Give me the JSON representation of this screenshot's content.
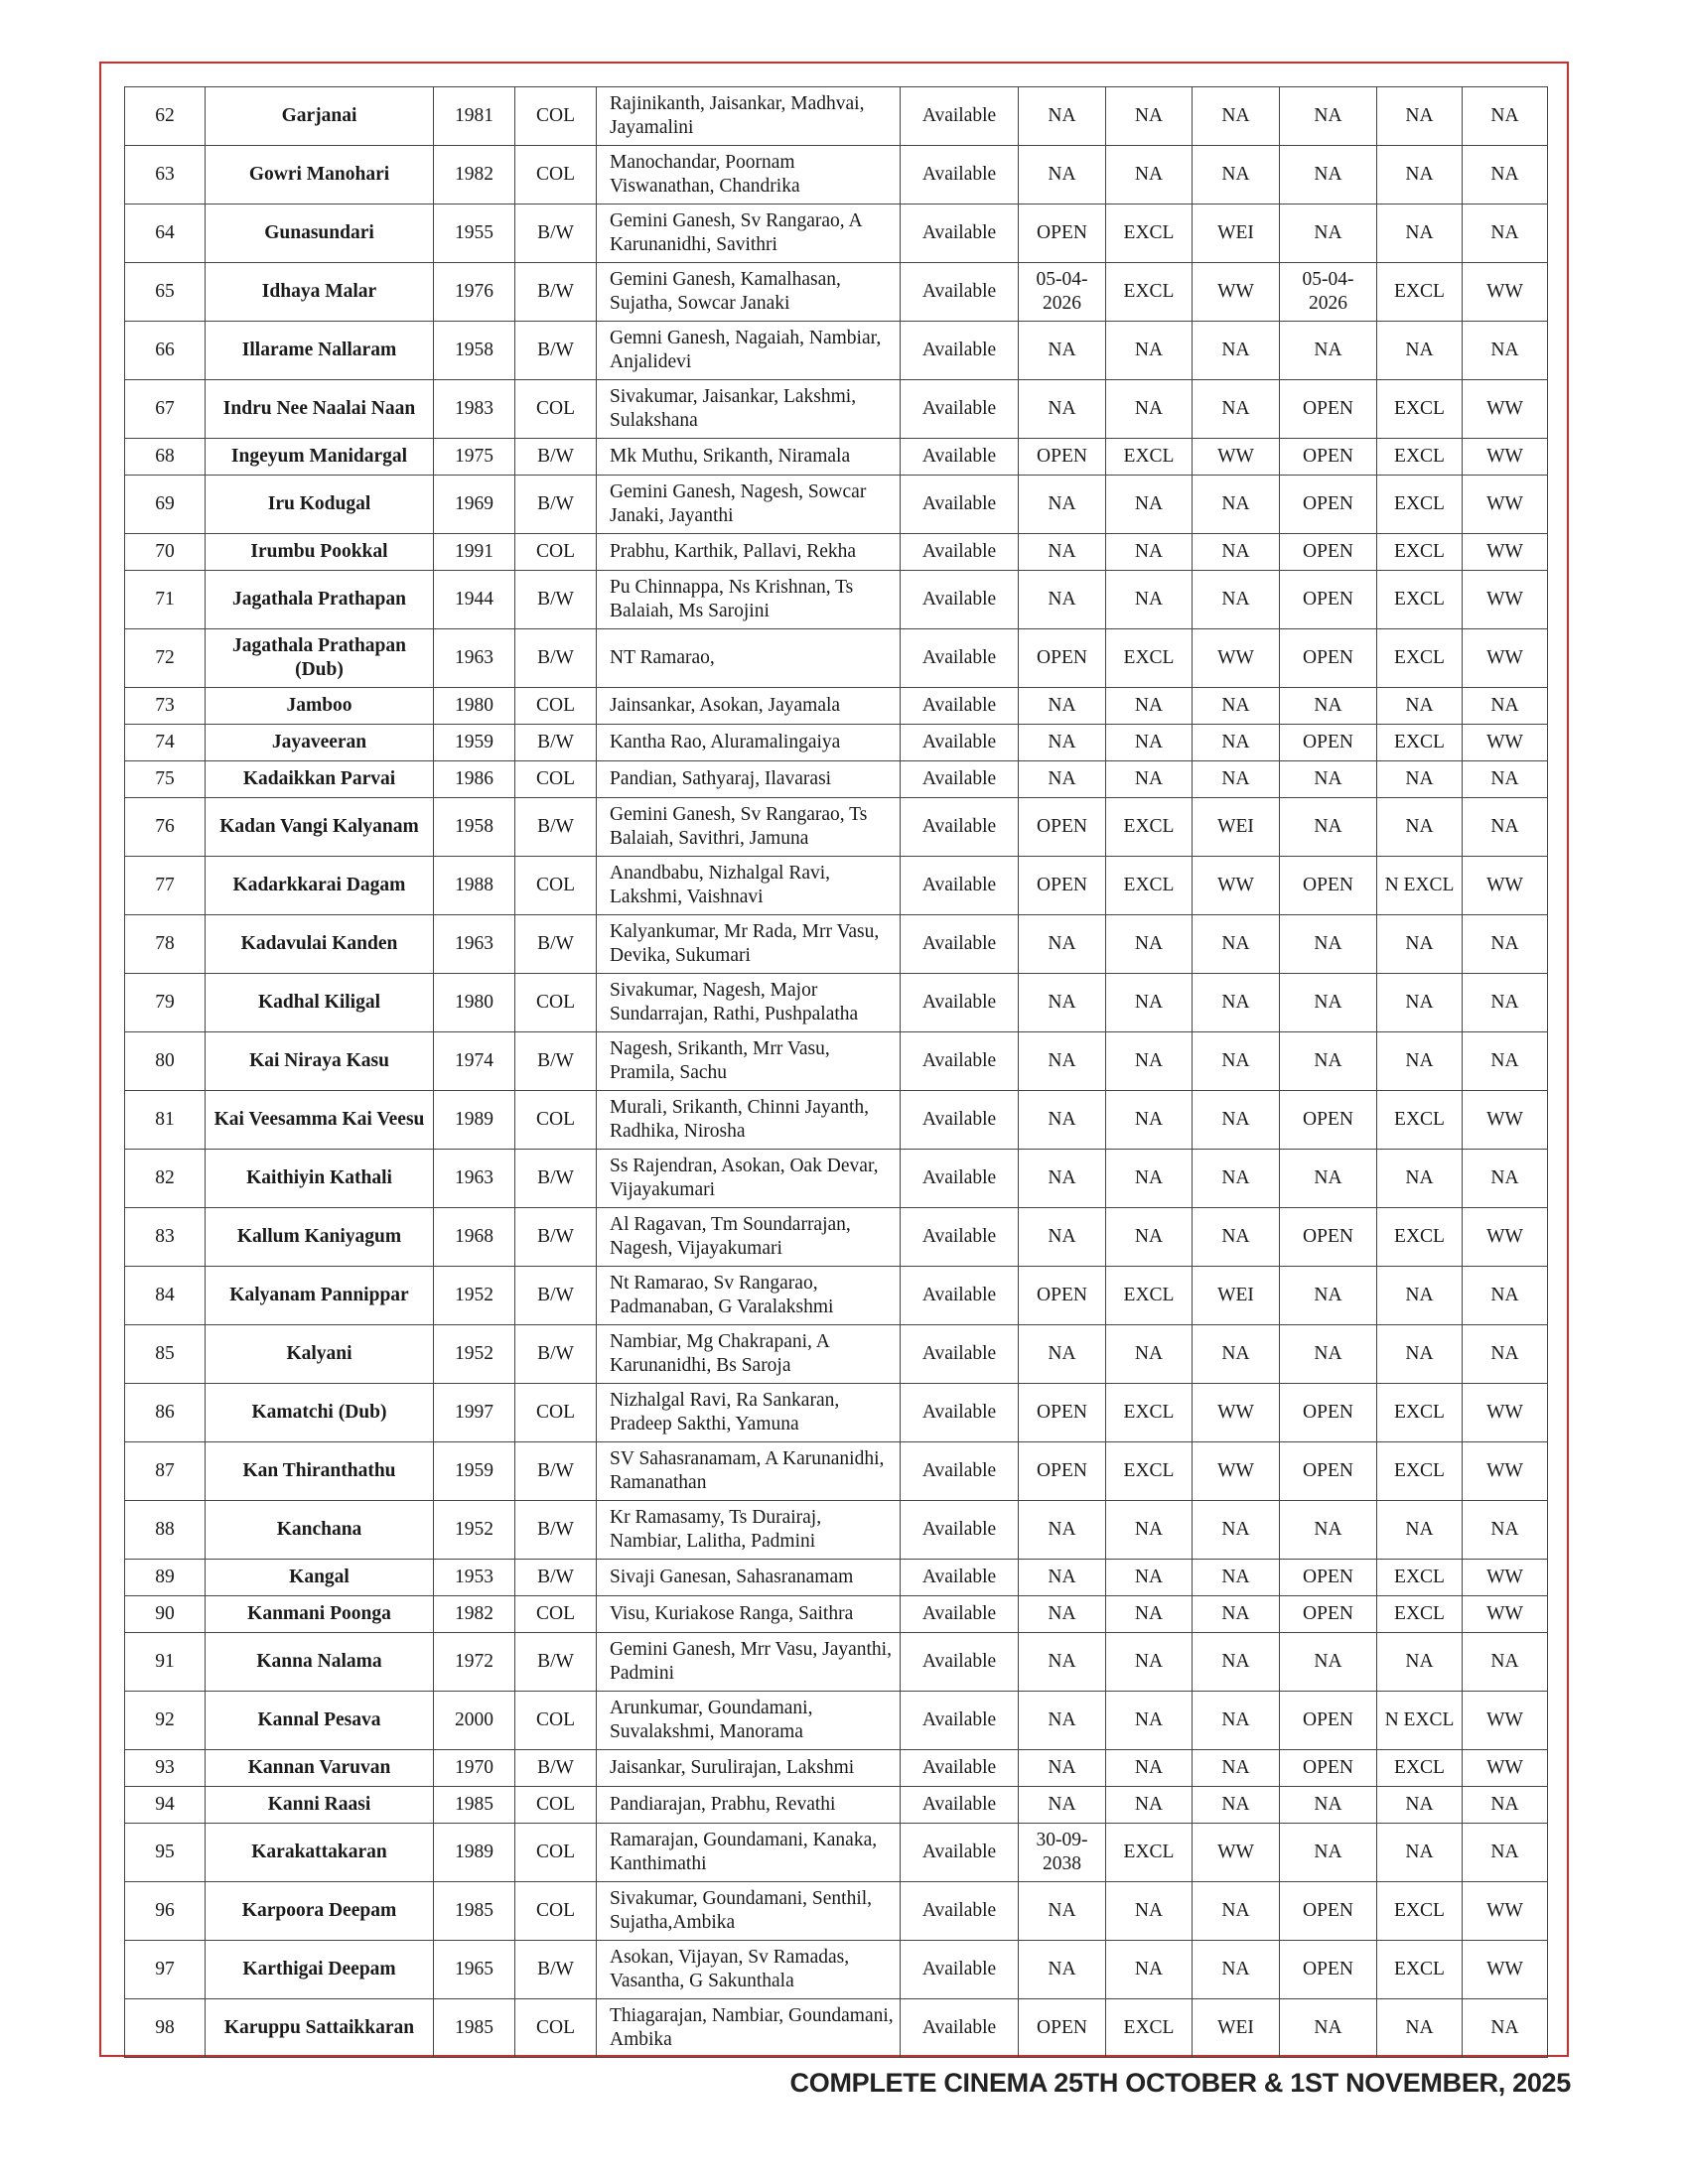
{
  "footer": "COMPLETE CINEMA 25TH OCTOBER & 1ST NOVEMBER, 2025",
  "colors": {
    "frame": "#d62b2b",
    "grid": "#444444"
  },
  "rows": [
    [
      "62",
      "Garjanai",
      "1981",
      "COL",
      "Rajinikanth, Jaisankar, Madhvai, Jayamalini",
      "Available",
      "NA",
      "NA",
      "NA",
      "NA",
      "NA",
      "NA"
    ],
    [
      "63",
      "Gowri Manohari",
      "1982",
      "COL",
      "Manochandar, Poornam Viswanathan, Chandrika",
      "Available",
      "NA",
      "NA",
      "NA",
      "NA",
      "NA",
      "NA"
    ],
    [
      "64",
      "Gunasundari",
      "1955",
      "B/W",
      "Gemini Ganesh, Sv Rangarao, A Karunanidhi, Savithri",
      "Available",
      "OPEN",
      "EXCL",
      "WEI",
      "NA",
      "NA",
      "NA"
    ],
    [
      "65",
      "Idhaya Malar",
      "1976",
      "B/W",
      "Gemini Ganesh, Kamalhasan, Sujatha, Sowcar Janaki",
      "Available",
      "05-04-2026",
      "EXCL",
      "WW",
      "05-04-2026",
      "EXCL",
      "WW"
    ],
    [
      "66",
      "Illarame Nallaram",
      "1958",
      "B/W",
      "Gemni Ganesh, Nagaiah, Nambiar, Anjalidevi",
      "Available",
      "NA",
      "NA",
      "NA",
      "NA",
      "NA",
      "NA"
    ],
    [
      "67",
      "Indru Nee Naalai Naan",
      "1983",
      "COL",
      "Sivakumar, Jaisankar, Lakshmi, Sulakshana",
      "Available",
      "NA",
      "NA",
      "NA",
      "OPEN",
      "EXCL",
      "WW"
    ],
    [
      "68",
      "Ingeyum Manidargal",
      "1975",
      "B/W",
      "Mk Muthu, Srikanth, Niramala",
      "Available",
      "OPEN",
      "EXCL",
      "WW",
      "OPEN",
      "EXCL",
      "WW"
    ],
    [
      "69",
      "Iru Kodugal",
      "1969",
      "B/W",
      "Gemini Ganesh, Nagesh, Sowcar Janaki, Jayanthi",
      "Available",
      "NA",
      "NA",
      "NA",
      "OPEN",
      "EXCL",
      "WW"
    ],
    [
      "70",
      "Irumbu Pookkal",
      "1991",
      "COL",
      "Prabhu, Karthik, Pallavi, Rekha",
      "Available",
      "NA",
      "NA",
      "NA",
      "OPEN",
      "EXCL",
      "WW"
    ],
    [
      "71",
      "Jagathala Prathapan",
      "1944",
      "B/W",
      "Pu Chinnappa, Ns Krishnan, Ts Balaiah, Ms Sarojini",
      "Available",
      "NA",
      "NA",
      "NA",
      "OPEN",
      "EXCL",
      "WW"
    ],
    [
      "72",
      "Jagathala Prathapan (Dub)",
      "1963",
      "B/W",
      "NT Ramarao,",
      "Available",
      "OPEN",
      "EXCL",
      "WW",
      "OPEN",
      "EXCL",
      "WW"
    ],
    [
      "73",
      "Jamboo",
      "1980",
      "COL",
      "Jainsankar, Asokan, Jayamala",
      "Available",
      "NA",
      "NA",
      "NA",
      "NA",
      "NA",
      "NA"
    ],
    [
      "74",
      "Jayaveeran",
      "1959",
      "B/W",
      "Kantha Rao, Aluramalingaiya",
      "Available",
      "NA",
      "NA",
      "NA",
      "OPEN",
      "EXCL",
      "WW"
    ],
    [
      "75",
      "Kadaikkan Parvai",
      "1986",
      "COL",
      "Pandian,  Sathyaraj, Ilavarasi",
      "Available",
      "NA",
      "NA",
      "NA",
      "NA",
      "NA",
      "NA"
    ],
    [
      "76",
      "Kadan Vangi Kalyanam",
      "1958",
      "B/W",
      "Gemini Ganesh, Sv Rangarao, Ts Balaiah, Savithri, Jamuna",
      "Available",
      "OPEN",
      "EXCL",
      "WEI",
      "NA",
      "NA",
      "NA"
    ],
    [
      "77",
      "Kadarkkarai Dagam",
      "1988",
      "COL",
      "Anandbabu, Nizhalgal Ravi, Lakshmi, Vaishnavi",
      "Available",
      "OPEN",
      "EXCL",
      "WW",
      "OPEN",
      "N EXCL",
      "WW"
    ],
    [
      "78",
      "Kadavulai Kanden",
      "1963",
      "B/W",
      "Kalyankumar, Mr Rada, Mrr Vasu, Devika, Sukumari",
      "Available",
      "NA",
      "NA",
      "NA",
      "NA",
      "NA",
      "NA"
    ],
    [
      "79",
      "Kadhal Kiligal",
      "1980",
      "COL",
      "Sivakumar, Nagesh, Major Sundarrajan, Rathi, Pushpalatha",
      "Available",
      "NA",
      "NA",
      "NA",
      "NA",
      "NA",
      "NA"
    ],
    [
      "80",
      "Kai Niraya Kasu",
      "1974",
      "B/W",
      "Nagesh, Srikanth, Mrr Vasu, Pramila, Sachu",
      "Available",
      "NA",
      "NA",
      "NA",
      "NA",
      "NA",
      "NA"
    ],
    [
      "81",
      "Kai Veesamma Kai Veesu",
      "1989",
      "COL",
      "Murali, Srikanth, Chinni Jayanth, Radhika, Nirosha",
      "Available",
      "NA",
      "NA",
      "NA",
      "OPEN",
      "EXCL",
      "WW"
    ],
    [
      "82",
      "Kaithiyin Kathali",
      "1963",
      "B/W",
      "Ss Rajendran, Asokan, Oak Devar, Vijayakumari",
      "Available",
      "NA",
      "NA",
      "NA",
      "NA",
      "NA",
      "NA"
    ],
    [
      "83",
      "Kallum Kaniyagum",
      "1968",
      "B/W",
      "Al Ragavan, Tm Soundarrajan, Nagesh, Vijayakumari",
      "Available",
      "NA",
      "NA",
      "NA",
      "OPEN",
      "EXCL",
      "WW"
    ],
    [
      "84",
      "Kalyanam Pannippar",
      "1952",
      "B/W",
      "Nt Ramarao, Sv Rangarao, Padmanaban, G Varalakshmi",
      "Available",
      "OPEN",
      "EXCL",
      "WEI",
      "NA",
      "NA",
      "NA"
    ],
    [
      "85",
      "Kalyani",
      "1952",
      "B/W",
      "Nambiar, Mg Chakrapani, A Karunanidhi, Bs Saroja",
      "Available",
      "NA",
      "NA",
      "NA",
      "NA",
      "NA",
      "NA"
    ],
    [
      "86",
      "Kamatchi  (Dub)",
      "1997",
      "COL",
      "Nizhalgal Ravi, Ra Sankaran, Pradeep Sakthi, Yamuna",
      "Available",
      "OPEN",
      "EXCL",
      "WW",
      "OPEN",
      "EXCL",
      "WW"
    ],
    [
      "87",
      "Kan Thiranthathu",
      "1959",
      "B/W",
      "SV Sahasranamam, A Karunanidhi, Ramanathan",
      "Available",
      "OPEN",
      "EXCL",
      "WW",
      "OPEN",
      "EXCL",
      "WW"
    ],
    [
      "88",
      "Kanchana",
      "1952",
      "B/W",
      "Kr Ramasamy, Ts Durairaj, Nambiar, Lalitha, Padmini",
      "Available",
      "NA",
      "NA",
      "NA",
      "NA",
      "NA",
      "NA"
    ],
    [
      "89",
      "Kangal",
      "1953",
      "B/W",
      "Sivaji Ganesan, Sahasranamam",
      "Available",
      "NA",
      "NA",
      "NA",
      "OPEN",
      "EXCL",
      "WW"
    ],
    [
      "90",
      "Kanmani Poonga",
      "1982",
      "COL",
      "Visu, Kuriakose Ranga, Saithra",
      "Available",
      "NA",
      "NA",
      "NA",
      "OPEN",
      "EXCL",
      "WW"
    ],
    [
      "91",
      "Kanna Nalama",
      "1972",
      "B/W",
      "Gemini Ganesh, Mrr Vasu, Jayanthi, Padmini",
      "Available",
      "NA",
      "NA",
      "NA",
      "NA",
      "NA",
      "NA"
    ],
    [
      "92",
      "Kannal Pesava",
      "2000",
      "COL",
      "Arunkumar, Goundamani, Suvalakshmi, Manorama",
      "Available",
      "NA",
      "NA",
      "NA",
      "OPEN",
      "N EXCL",
      "WW"
    ],
    [
      "93",
      "Kannan Varuvan",
      "1970",
      "B/W",
      "Jaisankar, Surulirajan, Lakshmi",
      "Available",
      "NA",
      "NA",
      "NA",
      "OPEN",
      "EXCL",
      "WW"
    ],
    [
      "94",
      "Kanni Raasi",
      "1985",
      "COL",
      "Pandiarajan, Prabhu, Revathi",
      "Available",
      "NA",
      "NA",
      "NA",
      "NA",
      "NA",
      "NA"
    ],
    [
      "95",
      "Karakattakaran",
      "1989",
      "COL",
      "Ramarajan, Goundamani, Kanaka, Kanthimathi",
      "Available",
      "30-09-2038",
      "EXCL",
      "WW",
      "NA",
      "NA",
      "NA"
    ],
    [
      "96",
      "Karpoora Deepam",
      "1985",
      "COL",
      "Sivakumar, Goundamani, Senthil, Sujatha,Ambika",
      "Available",
      "NA",
      "NA",
      "NA",
      "OPEN",
      "EXCL",
      "WW"
    ],
    [
      "97",
      "Karthigai Deepam",
      "1965",
      "B/W",
      "Asokan, Vijayan, Sv Ramadas, Vasantha, G Sakunthala",
      "Available",
      "NA",
      "NA",
      "NA",
      "OPEN",
      "EXCL",
      "WW"
    ],
    [
      "98",
      "Karuppu Sattaikkaran",
      "1985",
      "COL",
      "Thiagarajan, Nambiar, Goundamani, Ambika",
      "Available",
      "OPEN",
      "EXCL",
      "WEI",
      "NA",
      "NA",
      "NA"
    ]
  ]
}
